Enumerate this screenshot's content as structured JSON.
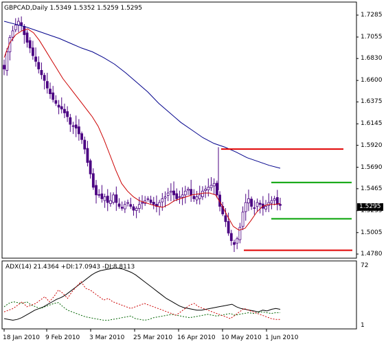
{
  "main_title": "GBPCAD,Daily  1.5349 1.5352 1.5259 1.5295",
  "adx_title": "ADX(14) 21.4364 +DI:17.0943 -DI:8.8113",
  "current_price": "1.5295",
  "adx_scale": {
    "top": "72",
    "bottom": "1"
  },
  "colors": {
    "ma_long": "#00008b",
    "ma_short": "#cc0000",
    "candle": "#4b0082",
    "adx": "#000000",
    "plus_di": "#006400",
    "minus_di": "#cc0000",
    "resistance": "#e00000",
    "support": "#00a000"
  },
  "chart_data": [
    {
      "type": "candlestick",
      "title": "GBPCAD,Daily  1.5349 1.5352 1.5259 1.5295",
      "ohlc_last": {
        "open": 1.5349,
        "high": 1.5352,
        "low": 1.5259,
        "close": 1.5295
      },
      "y_tick_labels": [
        "1.7285",
        "1.7055",
        "1.6830",
        "1.6600",
        "1.6375",
        "1.6145",
        "1.5920",
        "1.5690",
        "1.5465",
        "1.5235",
        "1.5005",
        "1.4780"
      ],
      "ylim": [
        1.478,
        1.7285
      ],
      "x_tick_labels": [
        "18 Jan 2010",
        "9 Feb 2010",
        "3 Mar 2010",
        "25 Mar 2010",
        "16 Apr 2010",
        "10 May 2010",
        "1 Jun 2010"
      ],
      "close_path": [
        1.672,
        1.69,
        1.705,
        1.712,
        1.718,
        1.722,
        1.718,
        1.708,
        1.7,
        1.694,
        1.686,
        1.68,
        1.672,
        1.666,
        1.66,
        1.652,
        1.646,
        1.64,
        1.636,
        1.632,
        1.63,
        1.626,
        1.622,
        1.614,
        1.612,
        1.61,
        1.604,
        1.598,
        1.588,
        1.574,
        1.562,
        1.548,
        1.54,
        1.54,
        1.536,
        1.538,
        1.532,
        1.534,
        1.54,
        1.532,
        1.528,
        1.526,
        1.53,
        1.532,
        1.528,
        1.524,
        1.526,
        1.53,
        1.532,
        1.534,
        1.536,
        1.532,
        1.53,
        1.528,
        1.532,
        1.536,
        1.538,
        1.542,
        1.544,
        1.54,
        1.536,
        1.538,
        1.54,
        1.544,
        1.546,
        1.54,
        1.536,
        1.538,
        1.54,
        1.544,
        1.546,
        1.548,
        1.55,
        1.552,
        1.54,
        1.528,
        1.52,
        1.512,
        1.5,
        1.492,
        1.488,
        1.494,
        1.506,
        1.522,
        1.532,
        1.536,
        1.528,
        1.526,
        1.532,
        1.53,
        1.526,
        1.528,
        1.532,
        1.534,
        1.536,
        1.53,
        1.529
      ],
      "series": [
        {
          "name": "",
          "type": "line",
          "values": [
            1.722,
            1.719,
            1.716,
            1.712,
            1.708,
            1.704,
            1.699,
            1.694,
            1.69,
            1.684,
            1.677,
            1.668,
            1.658,
            1.648,
            1.636,
            1.626,
            1.616,
            1.608,
            1.6,
            1.594,
            1.59,
            1.585,
            1.579,
            1.575,
            1.571,
            1.568
          ]
        },
        {
          "name": "",
          "type": "line",
          "values": [
            1.684,
            1.7,
            1.708,
            1.712,
            1.714,
            1.71,
            1.702,
            1.692,
            1.682,
            1.672,
            1.662,
            1.654,
            1.646,
            1.638,
            1.63,
            1.622,
            1.612,
            1.598,
            1.582,
            1.566,
            1.552,
            1.544,
            1.538,
            1.534,
            1.532,
            1.53,
            1.528,
            1.527,
            1.53,
            1.534,
            1.536,
            1.538,
            1.54,
            1.541,
            1.542,
            1.542,
            1.54,
            1.53,
            1.518,
            1.507,
            1.503,
            1.505,
            1.513,
            1.522,
            1.528,
            1.53,
            1.53,
            1.531
          ]
        }
      ],
      "levels": [
        {
          "kind": "resistance",
          "value": 1.588
        },
        {
          "kind": "resistance",
          "value": 1.482
        },
        {
          "kind": "support",
          "value": 1.553
        },
        {
          "kind": "support",
          "value": 1.515
        }
      ]
    },
    {
      "type": "line",
      "title": "ADX(14) 21.4364 +DI:17.0943 -DI:8.8113",
      "ylim": [
        1,
        72
      ],
      "y_tick_labels": [
        "72",
        "1"
      ],
      "series": [
        {
          "name": "ADX(14)",
          "values": [
            10,
            9,
            8,
            9,
            11,
            14,
            17,
            20,
            22,
            24,
            27,
            30,
            33,
            35,
            38,
            42,
            46,
            50,
            54,
            58,
            62,
            65,
            67,
            68,
            69,
            70,
            70,
            69,
            67,
            65,
            62,
            58,
            54,
            50,
            46,
            42,
            38,
            34,
            31,
            28,
            25,
            23,
            22,
            21,
            20,
            20,
            21,
            22,
            23,
            24,
            25,
            26,
            27,
            24,
            22,
            21,
            20,
            19,
            18,
            20,
            19,
            21,
            22,
            21
          ]
        },
        {
          "name": "+DI",
          "values": [
            24,
            28,
            30,
            29,
            28,
            30,
            26,
            24,
            22,
            24,
            26,
            28,
            29,
            24,
            20,
            18,
            16,
            14,
            12,
            11,
            10,
            9,
            8,
            8,
            9,
            10,
            11,
            12,
            13,
            10,
            9,
            8,
            9,
            11,
            12,
            13,
            14,
            15,
            14,
            13,
            12,
            11,
            12,
            13,
            14,
            15,
            14,
            13,
            14,
            15,
            16,
            14,
            15,
            16,
            17,
            16,
            17,
            18,
            17,
            16,
            17,
            17
          ]
        },
        {
          "name": "-DI",
          "values": [
            18,
            20,
            22,
            26,
            30,
            24,
            26,
            28,
            32,
            36,
            30,
            36,
            44,
            40,
            34,
            42,
            48,
            54,
            46,
            44,
            40,
            36,
            32,
            34,
            30,
            28,
            26,
            24,
            22,
            24,
            26,
            28,
            26,
            24,
            22,
            20,
            18,
            16,
            14,
            18,
            22,
            26,
            28,
            24,
            22,
            20,
            18,
            16,
            14,
            12,
            10,
            14,
            18,
            22,
            20,
            18,
            16,
            14,
            12,
            10,
            9,
            9
          ]
        }
      ]
    }
  ]
}
